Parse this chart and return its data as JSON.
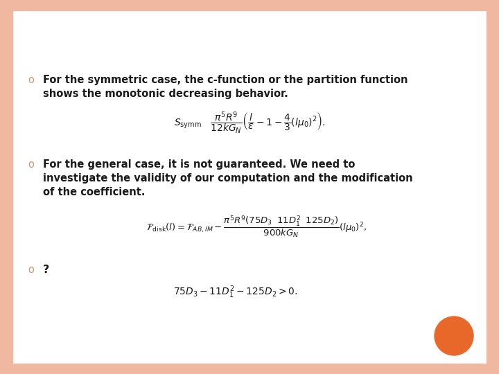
{
  "background_color": "#ffffff",
  "border_color": "#f0b8a0",
  "bullet_color": "#d4956a",
  "bullet_char": "o",
  "bullet1_text_line1": "For the symmetric case, the c-function or the partition function",
  "bullet1_text_line2": "shows the monotonic decreasing behavior.",
  "bullet2_text_line1": "For the general case, it is not guaranteed. We need to",
  "bullet2_text_line2": "investigate the validity of our computation and the modification",
  "bullet2_text_line3": "of the coefficient.",
  "bullet3_text": "?",
  "orange_dot_color": "#e8682a",
  "text_color": "#1a1a1a",
  "eq_color": "#1a1a1a",
  "font_size_text": 10.5,
  "font_size_eq": 10.0,
  "font_size_bullet": 10.5
}
